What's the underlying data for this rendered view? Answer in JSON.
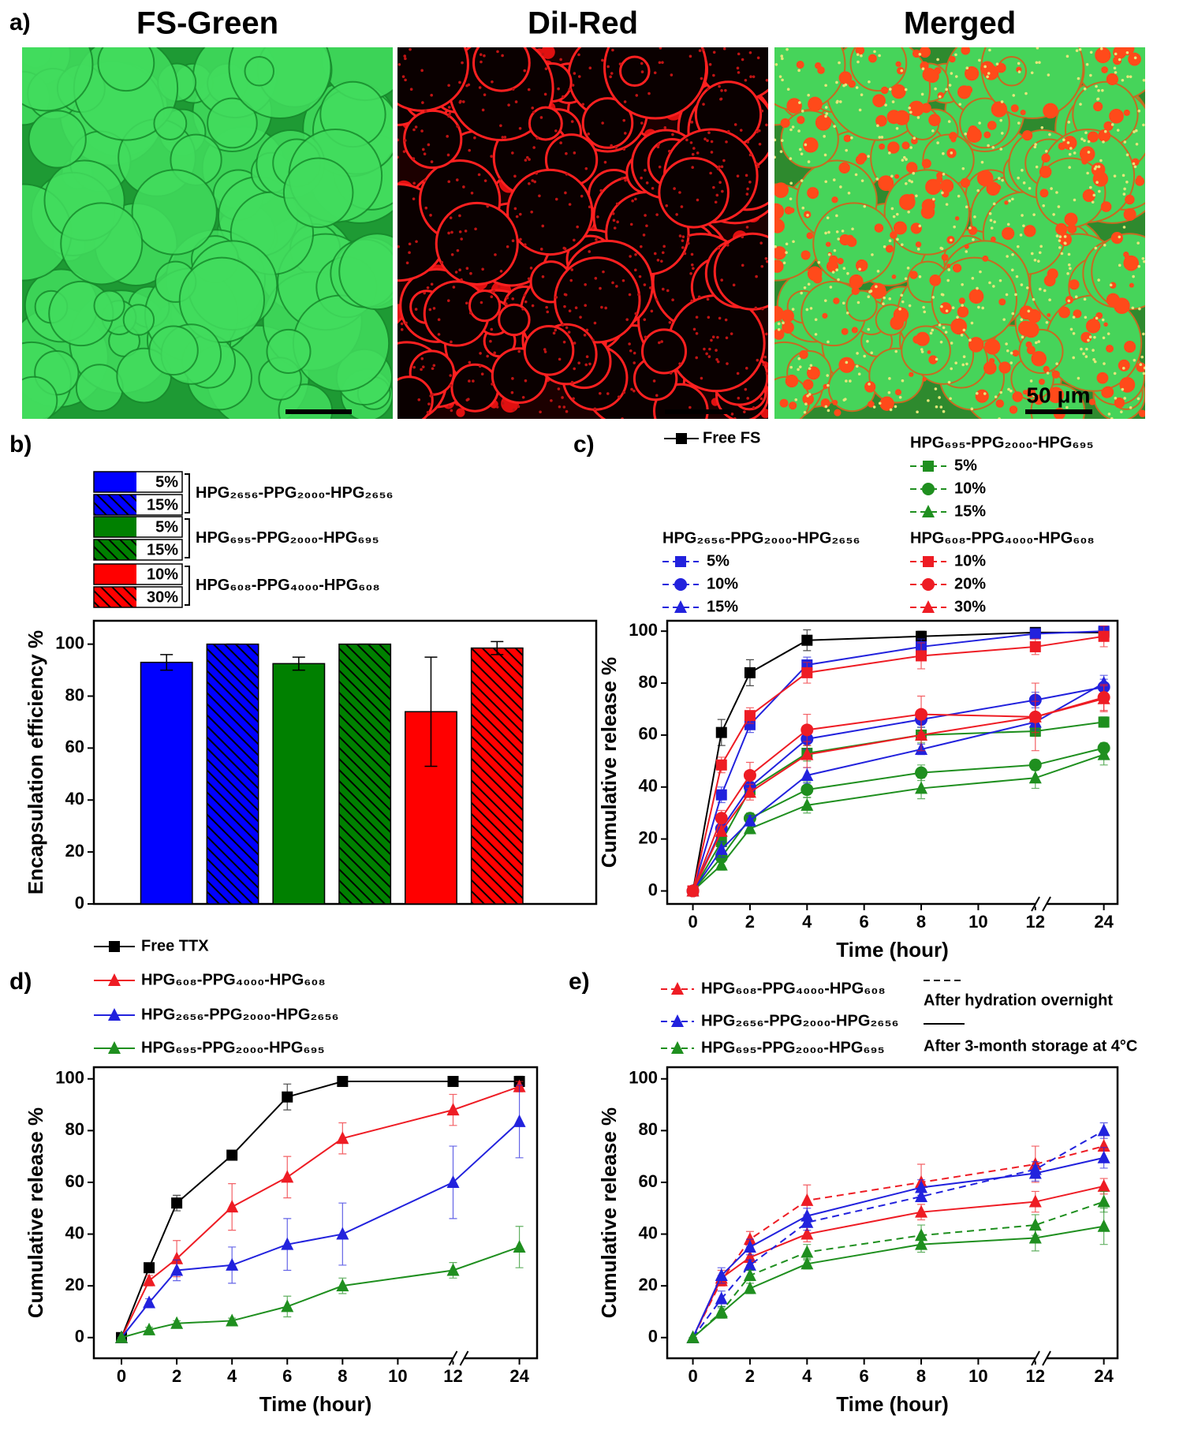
{
  "chart_data": [
    {
      "type": "image",
      "panel": "a)",
      "images": [
        {
          "title": "FS-Green"
        },
        {
          "title": "DiI-Red"
        },
        {
          "title": "Merged"
        }
      ],
      "scale_bar": "50 μm"
    },
    {
      "type": "bar",
      "panel": "b)",
      "y_label": "Encapsulation efficiency %",
      "ylim": [
        0,
        109
      ],
      "yticks": [
        0,
        20,
        40,
        60,
        80,
        100
      ],
      "groups": [
        {
          "name": "HPG₂₆₅₆-PPG₂₀₀₀-HPG₂₆₅₆",
          "color": "#0000ff",
          "bars": [
            {
              "name": "5%",
              "hatch": false,
              "value": 93,
              "error": 3
            },
            {
              "name": "15%",
              "hatch": true,
              "value": 100,
              "error": 0
            }
          ]
        },
        {
          "name": "HPG₆₉₅-PPG₂₀₀₀-HPG₆₉₅",
          "color": "#008000",
          "bars": [
            {
              "name": "5%",
              "hatch": false,
              "value": 92.5,
              "error": 2.5
            },
            {
              "name": "15%",
              "hatch": true,
              "value": 100,
              "error": 0
            }
          ]
        },
        {
          "name": "HPG₆₀₈-PPG₄₀₀₀-HPG₆₀₈",
          "color": "#ff0000",
          "bars": [
            {
              "name": "10%",
              "hatch": false,
              "value": 74,
              "error": 21
            },
            {
              "name": "30%",
              "hatch": true,
              "value": 98.5,
              "error": 2.5
            }
          ]
        }
      ]
    },
    {
      "type": "line",
      "panel": "c)",
      "x_label": "Time (hour)",
      "y_label": "Cumulative release %",
      "x": [
        0,
        1,
        2,
        4,
        8,
        12,
        24
      ],
      "xlim": [
        -0.9,
        26.4
      ],
      "xticks": [
        0,
        2,
        4,
        6,
        8,
        10,
        12,
        24
      ],
      "ylim": [
        -5,
        104
      ],
      "yticks": [
        0,
        20,
        40,
        60,
        80,
        100
      ],
      "series": [
        {
          "name": "Free FS",
          "color": "#000000",
          "marker": "square",
          "values": [
            0,
            61,
            84,
            96.5,
            98,
            99.5,
            99.5
          ],
          "errors": [
            0,
            5,
            5,
            4,
            2,
            1,
            1
          ]
        }
      ],
      "groups": [
        {
          "name": "HPG₆₉₅-PPG₂₀₀₀-HPG₆₉₅",
          "color": "#1f8f1f",
          "series": [
            {
              "name": "5%",
              "marker": "square",
              "values": [
                0,
                19,
                39,
                53,
                60,
                61.5,
                65
              ],
              "errors": [
                0,
                2,
                3,
                3,
                3,
                2,
                2
              ]
            },
            {
              "name": "10%",
              "marker": "circle",
              "values": [
                0,
                13,
                28,
                39,
                45.5,
                48.5,
                55
              ],
              "errors": [
                0,
                2,
                2,
                3,
                3,
                2,
                2
              ]
            },
            {
              "name": "15%",
              "marker": "triangle",
              "values": [
                0,
                10,
                24,
                33,
                39.5,
                43.5,
                52.5
              ],
              "errors": [
                0,
                2,
                2,
                3,
                4,
                4,
                4
              ]
            }
          ]
        },
        {
          "name": "HPG₂₆₅₆-PPG₂₀₀₀-HPG₂₆₅₆",
          "color": "#2222dd",
          "series": [
            {
              "name": "5%",
              "marker": "square",
              "values": [
                0,
                37,
                64,
                87,
                94,
                99,
                100
              ],
              "errors": [
                0,
                3,
                3,
                3,
                3,
                1,
                1
              ]
            },
            {
              "name": "10%",
              "marker": "circle",
              "values": [
                0,
                24,
                40,
                58.5,
                66,
                73.5,
                78.5
              ],
              "errors": [
                0,
                3,
                3,
                4,
                3,
                3,
                3
              ]
            },
            {
              "name": "15%",
              "marker": "triangle",
              "values": [
                0,
                16,
                27,
                44.5,
                54.5,
                65,
                80
              ],
              "errors": [
                0,
                3,
                2,
                3,
                2,
                3,
                3
              ]
            }
          ]
        },
        {
          "name": "HPG₆₀₈-PPG₄₀₀₀-HPG₆₀₈",
          "color": "#ee1c24",
          "series": [
            {
              "name": "10%",
              "marker": "square",
              "values": [
                0,
                48.5,
                67.5,
                84,
                90.5,
                94,
                98
              ],
              "errors": [
                0,
                3,
                3,
                4,
                5,
                3,
                4
              ]
            },
            {
              "name": "20%",
              "marker": "circle",
              "values": [
                0,
                28,
                44.5,
                62,
                68,
                67,
                74.5
              ],
              "errors": [
                0,
                3,
                5,
                6,
                7,
                13,
                5
              ]
            },
            {
              "name": "30%",
              "marker": "triangle",
              "values": [
                0,
                23,
                38,
                52.5,
                60,
                67,
                74
              ],
              "errors": [
                0,
                2,
                3,
                5,
                6,
                6,
                5
              ]
            }
          ]
        }
      ]
    },
    {
      "type": "line",
      "panel": "d)",
      "x_label": "Time (hour)",
      "y_label": "Cumulative release %",
      "x": [
        0,
        1,
        2,
        4,
        6,
        8,
        12,
        24
      ],
      "xlim": [
        -1,
        27.2
      ],
      "xticks": [
        0,
        2,
        4,
        6,
        8,
        10,
        12,
        24
      ],
      "ylim": [
        -8,
        104.5
      ],
      "yticks": [
        0,
        20,
        40,
        60,
        80,
        100
      ],
      "series": [
        {
          "name": "Free TTX",
          "color": "#000000",
          "marker": "square",
          "values": [
            0,
            27,
            52,
            70.5,
            93,
            99,
            99,
            99
          ],
          "errors": [
            0,
            1.5,
            3,
            1,
            5,
            1,
            1,
            2
          ]
        },
        {
          "name": "HPG₆₀₈-PPG₄₀₀₀-HPG₆₀₈",
          "color": "#ee1c24",
          "marker": "triangle",
          "values": [
            0,
            22,
            30.5,
            50.5,
            62,
            77,
            88,
            97
          ],
          "errors": [
            0,
            2,
            7,
            9,
            8,
            6,
            6,
            2
          ]
        },
        {
          "name": "HPG₂₆₅₆-PPG₂₀₀₀-HPG₂₆₅₆",
          "color": "#2222dd",
          "marker": "triangle",
          "values": [
            0,
            13.5,
            26,
            28,
            36,
            40,
            60,
            83.5
          ],
          "errors": [
            0,
            1.5,
            4,
            7,
            10,
            12,
            14,
            14
          ]
        },
        {
          "name": "HPG₆₉₅-PPG₂₀₀₀-HPG₆₉₅",
          "color": "#1f8f1f",
          "marker": "triangle",
          "values": [
            0,
            3,
            5.5,
            6.5,
            12,
            20,
            26,
            35
          ],
          "errors": [
            0,
            1,
            1,
            1,
            4,
            3,
            3,
            8
          ]
        }
      ]
    },
    {
      "type": "line",
      "panel": "e)",
      "x_label": "Time (hour)",
      "y_label": "Cumulative release %",
      "x": [
        0,
        1,
        2,
        4,
        8,
        12,
        24
      ],
      "xlim": [
        -0.9,
        26.4
      ],
      "xticks": [
        0,
        2,
        4,
        6,
        8,
        10,
        12,
        24
      ],
      "ylim": [
        -8,
        104.5
      ],
      "yticks": [
        0,
        20,
        40,
        60,
        80,
        100
      ],
      "line_styles": [
        {
          "label": "After hydration overnight",
          "dashed": true
        },
        {
          "label": "After 3-month storage at 4°C",
          "dashed": false
        }
      ],
      "groups": [
        {
          "name": "HPG₆₀₈-PPG₄₀₀₀-HPG₆₀₈",
          "color": "#ee1c24",
          "marker": "triangle",
          "series": [
            {
              "dashed": true,
              "values": [
                0,
                22,
                38,
                53,
                60,
                67,
                74
              ],
              "errors": [
                0,
                2,
                3,
                6,
                7,
                7,
                5
              ]
            },
            {
              "dashed": false,
              "values": [
                0,
                23,
                31,
                40,
                48.5,
                52.5,
                58.5
              ],
              "errors": [
                0,
                3,
                3,
                3,
                3,
                4,
                3
              ]
            }
          ]
        },
        {
          "name": "HPG₂₆₅₆-PPG₂₀₀₀-HPG₂₆₅₆",
          "color": "#2222dd",
          "marker": "triangle",
          "series": [
            {
              "dashed": true,
              "values": [
                0,
                15,
                28,
                44.5,
                54.5,
                65,
                80
              ],
              "errors": [
                0,
                3,
                2,
                3,
                2,
                3,
                3
              ]
            },
            {
              "dashed": false,
              "values": [
                0,
                24,
                35,
                47,
                58,
                63.5,
                69.5
              ],
              "errors": [
                0,
                3,
                3,
                3,
                3,
                3,
                4
              ]
            }
          ]
        },
        {
          "name": "HPG₆₉₅-PPG₂₀₀₀-HPG₆₉₅",
          "color": "#1f8f1f",
          "marker": "triangle",
          "series": [
            {
              "dashed": true,
              "values": [
                0,
                10,
                24,
                33,
                39.5,
                43.5,
                52.5
              ],
              "errors": [
                0,
                2,
                2,
                3,
                4,
                4,
                4
              ]
            },
            {
              "dashed": false,
              "values": [
                0,
                9.5,
                19,
                28.5,
                36,
                38.5,
                43
              ],
              "errors": [
                0,
                2,
                2,
                2,
                3,
                5,
                7
              ]
            }
          ]
        }
      ]
    }
  ]
}
